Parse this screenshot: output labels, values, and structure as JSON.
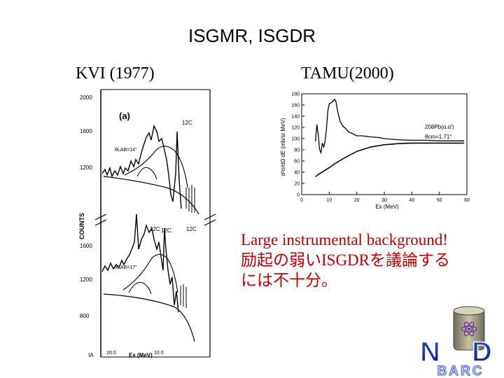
{
  "slide": {
    "title": "ISGMR, ISGDR",
    "left_label": "KVI (1977)",
    "right_label": "TAMU(2000)",
    "note_lines": [
      "Large instrumental background!",
      "励起の弱いISGDRを議論する",
      "には不十分。"
    ]
  },
  "kvi_figure": {
    "panel_label": "(a)",
    "ylabel": "COUNTS",
    "upper_yticks": [
      "2000",
      "1600",
      "1200"
    ],
    "lower_yticks": [
      "1600",
      "1200",
      "800"
    ],
    "upper_angle": "θLAB=14°",
    "lower_angle": "θLAB=17°",
    "c12_label": "12C",
    "xlabel": "Ex (MeV)",
    "xticks": [
      "20.0",
      "10.0"
    ],
    "corner_label": "IA"
  },
  "chart_data": {
    "type": "line",
    "title": "",
    "xlabel": "Ex (MeV)",
    "ylabel": "d²σ/dΩ dE (mb/sr MeV)",
    "xlim": [
      0,
      60
    ],
    "ylim": [
      0,
      180
    ],
    "xticks": [
      0,
      10,
      20,
      30,
      40,
      50,
      60
    ],
    "yticks": [
      0,
      20,
      40,
      60,
      80,
      100,
      120,
      140,
      160,
      180
    ],
    "annotation_lines": [
      "208Pb(α,α')",
      "θcm=1.71°"
    ],
    "series": [
      {
        "x": [
          5,
          5.5,
          6,
          6.5,
          7,
          7.5,
          8,
          8.5,
          9,
          9.5,
          10,
          11,
          12,
          12.5,
          13,
          14,
          15,
          16,
          17,
          18,
          20,
          22,
          25,
          28,
          30,
          35,
          40,
          45,
          50,
          55,
          59
        ],
        "y": [
          95,
          125,
          108,
          80,
          75,
          92,
          85,
          95,
          118,
          150,
          162,
          165,
          170,
          165,
          150,
          130,
          122,
          118,
          112,
          110,
          105,
          105,
          103,
          102,
          100,
          98,
          97,
          97,
          96,
          96,
          96
        ]
      },
      {
        "x": [
          5,
          6,
          8,
          10,
          12,
          15,
          18,
          20,
          25,
          30,
          35,
          40,
          45,
          50,
          55,
          59
        ],
        "y": [
          32,
          36,
          42,
          48,
          55,
          64,
          72,
          77,
          85,
          89,
          91,
          92,
          92,
          92,
          92,
          92
        ]
      }
    ]
  },
  "logo": {
    "letters": [
      "N",
      "D"
    ],
    "text": "BARC"
  }
}
